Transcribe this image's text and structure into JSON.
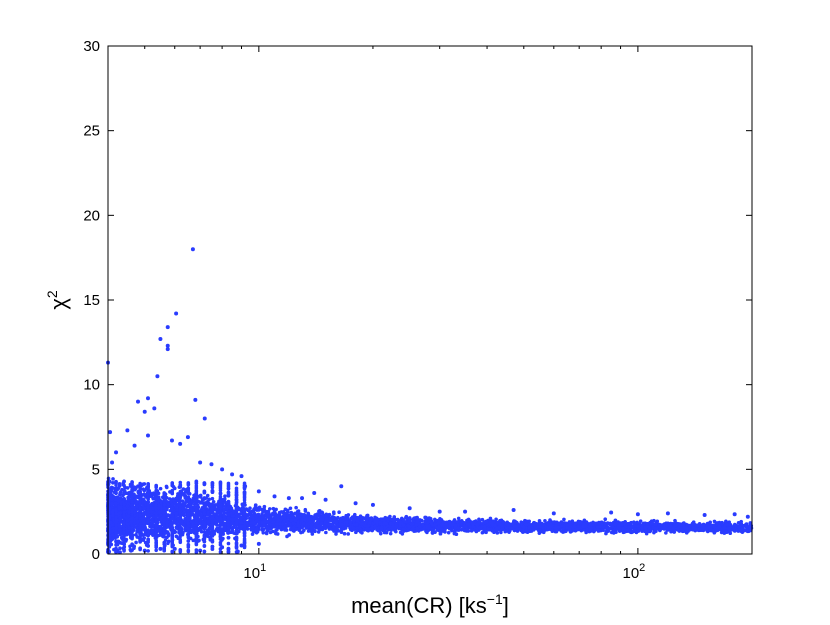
{
  "chart_data": {
    "type": "scatter",
    "title": "",
    "xlabel": "mean(CR) [ks",
    "xlabel_sup": "−1",
    "xlabel_end": "]",
    "ylabel": "χ",
    "ylabel_sup": "2",
    "x_scale": "log",
    "xlim": [
      4,
      200
    ],
    "ylim": [
      0,
      30
    ],
    "x_ticks": [
      {
        "value": 10,
        "base": "10",
        "exp": "1"
      },
      {
        "value": 100,
        "base": "10",
        "exp": "2"
      }
    ],
    "y_ticks": [
      {
        "value": 0,
        "label": "0"
      },
      {
        "value": 5,
        "label": "5"
      },
      {
        "value": 10,
        "label": "10"
      },
      {
        "value": 15,
        "label": "15"
      },
      {
        "value": 20,
        "label": "20"
      },
      {
        "value": 25,
        "label": "25"
      },
      {
        "value": 30,
        "label": "30"
      }
    ],
    "grid": false,
    "marker_color": "#2a3cff",
    "series": [
      {
        "values": [
          [
            4.0,
            11.3
          ],
          [
            4.05,
            7.2
          ],
          [
            4.1,
            5.4
          ],
          [
            4.2,
            6.0
          ],
          [
            4.5,
            7.3
          ],
          [
            4.7,
            6.4
          ],
          [
            4.8,
            9.0
          ],
          [
            5.0,
            8.4
          ],
          [
            5.1,
            9.2
          ],
          [
            5.3,
            8.6
          ],
          [
            5.1,
            7.0
          ],
          [
            5.4,
            10.5
          ],
          [
            5.5,
            12.7
          ],
          [
            5.75,
            12.3
          ],
          [
            5.75,
            12.1
          ],
          [
            5.75,
            13.4
          ],
          [
            6.05,
            14.2
          ],
          [
            6.7,
            18.0
          ],
          [
            6.8,
            9.1
          ],
          [
            7.2,
            8.0
          ],
          [
            6.2,
            6.5
          ],
          [
            6.5,
            6.9
          ],
          [
            5.9,
            6.7
          ],
          [
            7.0,
            5.4
          ],
          [
            7.5,
            5.3
          ],
          [
            8.0,
            5.0
          ],
          [
            8.5,
            4.7
          ],
          [
            9.0,
            4.6
          ],
          [
            9.2,
            4.0
          ],
          [
            10.0,
            3.7
          ],
          [
            11.0,
            3.4
          ],
          [
            12.0,
            3.3
          ],
          [
            13.0,
            3.3
          ],
          [
            14.0,
            3.6
          ],
          [
            16.5,
            4.0
          ],
          [
            15.0,
            3.2
          ],
          [
            18.0,
            3.0
          ],
          [
            20.0,
            2.9
          ],
          [
            25.0,
            2.7
          ],
          [
            30.0,
            2.5
          ],
          [
            35.0,
            2.5
          ],
          [
            47.0,
            2.6
          ],
          [
            60.0,
            2.4
          ],
          [
            85.0,
            2.45
          ],
          [
            100.0,
            2.35
          ],
          [
            120.0,
            2.4
          ],
          [
            150.0,
            2.3
          ],
          [
            180.0,
            2.35
          ],
          [
            195.0,
            2.2
          ],
          [
            4.3,
            0.1
          ],
          [
            4.6,
            0.2
          ],
          [
            5.0,
            0.2
          ],
          [
            5.5,
            0.3
          ],
          [
            6.0,
            0.3
          ],
          [
            7.0,
            0.2
          ],
          [
            8.0,
            0.4
          ],
          [
            9.0,
            0.5
          ],
          [
            10.0,
            0.6
          ],
          [
            8.8,
            0.15
          ]
        ]
      }
    ],
    "band": {
      "x_range": [
        4,
        200
      ],
      "centers": [
        [
          4,
          2.2
        ],
        [
          5,
          2.3
        ],
        [
          6,
          2.3
        ],
        [
          7,
          2.2
        ],
        [
          8,
          2.1
        ],
        [
          10,
          2.0
        ],
        [
          15,
          1.85
        ],
        [
          20,
          1.75
        ],
        [
          40,
          1.65
        ],
        [
          100,
          1.6
        ],
        [
          200,
          1.55
        ]
      ],
      "spreads": [
        [
          4,
          2.0
        ],
        [
          5,
          1.9
        ],
        [
          6,
          1.7
        ],
        [
          7,
          1.5
        ],
        [
          8,
          1.2
        ],
        [
          10,
          0.9
        ],
        [
          15,
          0.6
        ],
        [
          20,
          0.5
        ],
        [
          40,
          0.4
        ],
        [
          100,
          0.35
        ],
        [
          200,
          0.35
        ]
      ]
    }
  }
}
